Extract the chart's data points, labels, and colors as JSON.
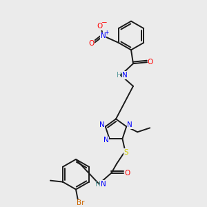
{
  "bg_color": "#ebebeb",
  "colors": {
    "C": "#1a1a1a",
    "N": "#0000ff",
    "O": "#ff0000",
    "S": "#cccc00",
    "Br": "#cc6600",
    "H": "#5f9ea0"
  },
  "bw": 1.4,
  "fs": 7.5
}
